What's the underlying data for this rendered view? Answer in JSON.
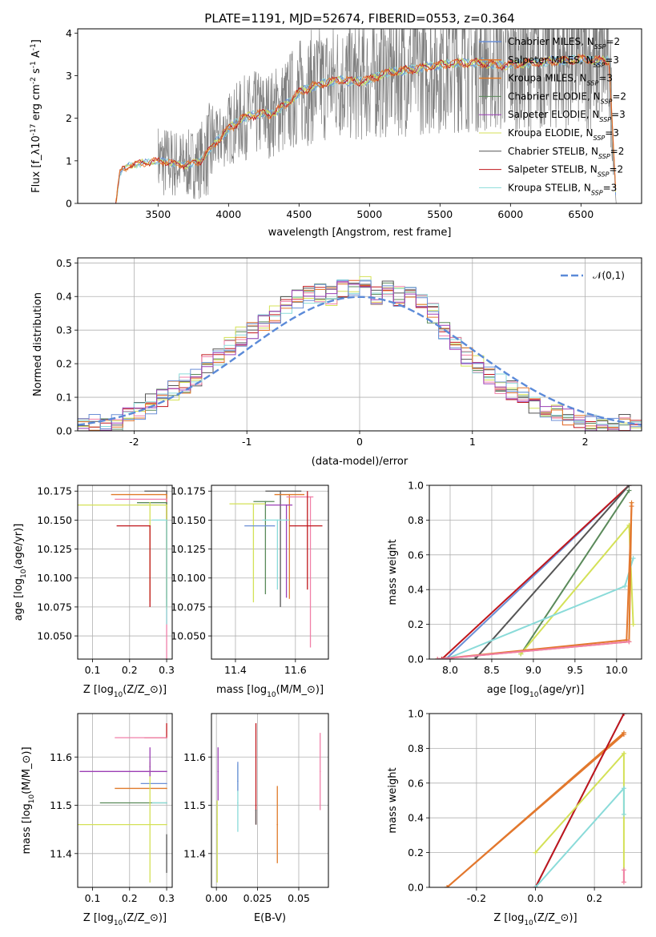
{
  "title": "PLATE=1191, MJD=52674, FIBERID=0553, z=0.364",
  "colors": {
    "Chabrier MILES": "#6b8fd6",
    "Salpeter MILES": "#e3772e",
    "Kroupa MILES": "#e07b2a",
    "Chabrier ELODIE": "#5a8a5a",
    "Salpeter ELODIE": "#9b3fb5",
    "Kroupa ELODIE": "#d4e157",
    "Chabrier STELIB": "#555555",
    "Salpeter STELIB": "#c0161b",
    "Kroupa STELIB": "#8adbd9",
    "pink": "#f07fa8",
    "data": "#808080"
  },
  "chart_data": [
    {
      "id": "spectrum",
      "type": "line",
      "xlabel": "wavelength [Angstrom, rest frame]",
      "ylabel": "Flux [f$_\\lambda$10$^{-17}$ erg cm$^{-2}$ s$^{-1}$ A$^{-1}$]",
      "xlim": [
        2930,
        6930
      ],
      "ylim": [
        0,
        4.1
      ],
      "xticks": [
        3500,
        4000,
        4500,
        5000,
        5500,
        6000,
        6500
      ],
      "yticks": [
        0,
        1,
        2,
        3,
        4
      ],
      "legend_position": "top-right",
      "legend": [
        {
          "name": "Chabrier MILES",
          "nssp": "2"
        },
        {
          "name": "Salpeter MILES",
          "nssp": "3"
        },
        {
          "name": "Kroupa MILES",
          "nssp": "3"
        },
        {
          "name": "Chabrier ELODIE",
          "nssp": "2"
        },
        {
          "name": "Salpeter ELODIE",
          "nssp": "3"
        },
        {
          "name": "Kroupa ELODIE",
          "nssp": "3"
        },
        {
          "name": "Chabrier STELIB",
          "nssp": "2"
        },
        {
          "name": "Salpeter STELIB",
          "nssp": "2"
        },
        {
          "name": "Kroupa STELIB",
          "nssp": "3"
        }
      ],
      "continuum": {
        "x": [
          3200,
          3230,
          3300,
          3400,
          3500,
          3600,
          3700,
          3800,
          3900,
          4000,
          4100,
          4200,
          4300,
          4400,
          4500,
          4600,
          4700,
          4800,
          4900,
          5000,
          5100,
          5200,
          5300,
          5400,
          5500,
          5600,
          5700,
          5800,
          5900,
          6000,
          6100,
          6200,
          6300,
          6400,
          6500,
          6600,
          6700,
          6750
        ],
        "y": [
          0,
          0.75,
          0.9,
          0.95,
          1.0,
          0.95,
          0.9,
          1.0,
          1.4,
          1.75,
          2.0,
          2.1,
          2.1,
          2.3,
          2.6,
          2.75,
          2.85,
          2.9,
          2.85,
          2.9,
          3.05,
          3.1,
          3.15,
          3.2,
          3.25,
          3.3,
          3.3,
          3.3,
          3.25,
          3.25,
          3.3,
          3.3,
          3.35,
          3.35,
          3.4,
          3.35,
          3.35,
          0
        ]
      }
    },
    {
      "id": "residuals",
      "type": "step",
      "xlabel": "(data-model)/error",
      "ylabel": "Normed distribution",
      "xlim": [
        -2.5,
        2.5
      ],
      "ylim": [
        0,
        0.515
      ],
      "xticks": [
        -2,
        -1,
        0,
        1,
        2
      ],
      "yticks": [
        0.0,
        0.1,
        0.2,
        0.3,
        0.4,
        0.5
      ],
      "legend": "$\\mathcal{N}(0,1)$",
      "legend_position": "top-right",
      "gaussian": {
        "mu": 0,
        "sigma": 1
      },
      "bin_width": 0.1,
      "hist_base": [
        0.02,
        0.02,
        0.02,
        0.025,
        0.04,
        0.06,
        0.08,
        0.1,
        0.12,
        0.14,
        0.16,
        0.2,
        0.22,
        0.25,
        0.28,
        0.3,
        0.32,
        0.35,
        0.37,
        0.39,
        0.41,
        0.41,
        0.4,
        0.42,
        0.43,
        0.43,
        0.4,
        0.42,
        0.4,
        0.4,
        0.38,
        0.35,
        0.3,
        0.26,
        0.22,
        0.2,
        0.17,
        0.14,
        0.12,
        0.1,
        0.08,
        0.07,
        0.06,
        0.04,
        0.03,
        0.02,
        0.02,
        0.02,
        0.02,
        0.02
      ]
    },
    {
      "id": "age-vs-Z",
      "type": "errorbar",
      "xlabel": "Z [log$_{10}$(Z/Z$_\\odot$)]",
      "ylabel": "age  [log$_{10}$($age/yr$)]",
      "xlim": [
        0.06,
        0.315
      ],
      "ylim": [
        10.03,
        10.18
      ],
      "xticks": [
        0.1,
        0.2,
        0.3
      ],
      "yticks": [
        10.05,
        10.075,
        10.1,
        10.125,
        10.15,
        10.175
      ],
      "points": [
        {
          "x": 0.3,
          "y": 10.175,
          "xerr": [
            0.06,
            0
          ],
          "yerr": [
            0.1,
            0
          ],
          "color": "Chabrier STELIB"
        },
        {
          "x": 0.3,
          "y": 10.172,
          "xerr": [
            0.15,
            0
          ],
          "yerr": [
            0.09,
            0
          ],
          "color": "Kroupa MILES"
        },
        {
          "x": 0.3,
          "y": 10.168,
          "xerr": [
            0.14,
            0
          ],
          "yerr": [
            0.14,
            0
          ],
          "color": "pink"
        },
        {
          "x": 0.3,
          "y": 10.165,
          "xerr": [
            0.08,
            0
          ],
          "yerr": [
            0.09,
            0
          ],
          "color": "Chabrier ELODIE"
        },
        {
          "x": 0.3,
          "y": 10.163,
          "xerr": [
            0.24,
            0
          ],
          "yerr": [
            0.09,
            0
          ],
          "color": "Kroupa ELODIE"
        },
        {
          "x": 0.3,
          "y": 10.15,
          "xerr": [
            0.04,
            0
          ],
          "yerr": [
            0.09,
            0
          ],
          "color": "Kroupa STELIB"
        },
        {
          "x": 0.255,
          "y": 10.165,
          "xerr": [
            0,
            0
          ],
          "yerr": [
            0.085,
            0
          ],
          "color": "Kroupa ELODIE"
        },
        {
          "x": 0.255,
          "y": 10.145,
          "xerr": [
            0.09,
            0
          ],
          "yerr": [
            0.07,
            0
          ],
          "color": "Salpeter STELIB"
        }
      ]
    },
    {
      "id": "age-vs-mass",
      "type": "errorbar",
      "xlabel": "mass [log$_{10}$($M/M_\\odot$)]",
      "ylabel": "",
      "xlim": [
        11.32,
        11.71
      ],
      "ylim": [
        10.03,
        10.18
      ],
      "xticks": [
        11.4,
        11.6
      ],
      "yticks": [
        10.05,
        10.075,
        10.1,
        10.125,
        10.15,
        10.175
      ],
      "points": [
        {
          "x": 11.55,
          "y": 10.175,
          "xerr": [
            0.05,
            0.07
          ],
          "yerr": [
            0.1,
            0
          ],
          "color": "Chabrier STELIB"
        },
        {
          "x": 11.58,
          "y": 10.172,
          "xerr": [
            0.05,
            0.05
          ],
          "yerr": [
            0.09,
            0
          ],
          "color": "Kroupa MILES"
        },
        {
          "x": 11.65,
          "y": 10.17,
          "xerr": [
            0.08,
            0.01
          ],
          "yerr": [
            0.13,
            0
          ],
          "color": "pink"
        },
        {
          "x": 11.5,
          "y": 10.166,
          "xerr": [
            0.04,
            0.03
          ],
          "yerr": [
            0.08,
            0
          ],
          "color": "Chabrier ELODIE"
        },
        {
          "x": 11.46,
          "y": 10.164,
          "xerr": [
            0.08,
            0.04
          ],
          "yerr": [
            0.085,
            0
          ],
          "color": "Kroupa ELODIE"
        },
        {
          "x": 11.57,
          "y": 10.163,
          "xerr": [
            0.07,
            0.02
          ],
          "yerr": [
            0.08,
            0
          ],
          "color": "Salpeter ELODIE"
        },
        {
          "x": 11.54,
          "y": 10.15,
          "xerr": [
            0.05,
            0.04
          ],
          "yerr": [
            0.06,
            0
          ],
          "color": "Kroupa STELIB"
        },
        {
          "x": 11.64,
          "y": 10.145,
          "xerr": [
            0.06,
            0.05
          ],
          "yerr": [
            0.055,
            0.03
          ],
          "color": "Salpeter STELIB"
        },
        {
          "x": 11.53,
          "y": 10.145,
          "xerr": [
            0.1,
            0
          ],
          "yerr": [
            0,
            0
          ],
          "color": "Chabrier MILES"
        }
      ]
    },
    {
      "id": "massweight-vs-age",
      "type": "line",
      "xlabel": "age  [log$_{10}$($age/yr$)]",
      "ylabel": "mass weight",
      "xlim": [
        7.75,
        10.3
      ],
      "ylim": [
        0,
        1.0
      ],
      "xticks": [
        8.0,
        8.5,
        9.0,
        9.5,
        10.0
      ],
      "yticks": [
        0.0,
        0.2,
        0.4,
        0.6,
        0.8,
        1.0
      ],
      "series": [
        {
          "color": "Chabrier MILES",
          "x": [
            7.95,
            10.15
          ],
          "y": [
            0.0,
            1.0
          ]
        },
        {
          "color": "Salpeter STELIB",
          "x": [
            7.9,
            10.15
          ],
          "y": [
            0.0,
            1.0
          ]
        },
        {
          "color": "Chabrier STELIB",
          "x": [
            8.3,
            10.15
          ],
          "y": [
            0.0,
            1.0
          ]
        },
        {
          "color": "Chabrier ELODIE",
          "x": [
            8.85,
            10.15
          ],
          "y": [
            0.03,
            0.97
          ]
        },
        {
          "color": "Kroupa ELODIE",
          "x": [
            8.85,
            10.15,
            10.2
          ],
          "y": [
            0.03,
            0.77,
            0.2
          ]
        },
        {
          "color": "Kroupa STELIB",
          "x": [
            7.95,
            10.1,
            10.2
          ],
          "y": [
            0.0,
            0.42,
            0.58
          ]
        },
        {
          "color": "Kroupa MILES",
          "x": [
            7.85,
            10.15,
            10.18
          ],
          "y": [
            0.0,
            0.1,
            0.9
          ]
        },
        {
          "color": "Salpeter MILES",
          "x": [
            7.85,
            10.12,
            10.18
          ],
          "y": [
            0.0,
            0.11,
            0.88
          ]
        },
        {
          "color": "pink",
          "x": [
            7.85,
            10.15
          ],
          "y": [
            0.0,
            0.1
          ]
        }
      ]
    },
    {
      "id": "mass-vs-Z",
      "type": "errorbar",
      "xlabel": "Z [log$_{10}$(Z/Z$_\\odot$)]",
      "ylabel": "mass [log$_{10}$($M/M_\\odot$)]",
      "xlim": [
        0.06,
        0.315
      ],
      "ylim": [
        11.33,
        11.69
      ],
      "xticks": [
        0.1,
        0.2,
        0.3
      ],
      "yticks": [
        11.4,
        11.5,
        11.6
      ],
      "points": [
        {
          "x": 0.3,
          "y": 11.64,
          "xerr": [
            0.06,
            0
          ],
          "yerr": [
            0.0,
            0.03
          ],
          "color": "Salpeter STELIB"
        },
        {
          "x": 0.3,
          "y": 11.64,
          "xerr": [
            0.14,
            0
          ],
          "yerr": [
            0,
            0
          ],
          "color": "pink"
        },
        {
          "x": 0.3,
          "y": 11.57,
          "xerr": [
            0.235,
            0
          ],
          "yerr": [
            0,
            0
          ],
          "color": "Salpeter ELODIE"
        },
        {
          "x": 0.3,
          "y": 11.545,
          "xerr": [
            0.07,
            0
          ],
          "yerr": [
            0,
            0
          ],
          "color": "Chabrier MILES"
        },
        {
          "x": 0.3,
          "y": 11.535,
          "xerr": [
            0.14,
            0
          ],
          "yerr": [
            0,
            0
          ],
          "color": "Kroupa MILES"
        },
        {
          "x": 0.3,
          "y": 11.505,
          "xerr": [
            0.18,
            0
          ],
          "yerr": [
            0,
            0
          ],
          "color": "Chabrier ELODIE"
        },
        {
          "x": 0.3,
          "y": 11.505,
          "xerr": [
            0.04,
            0
          ],
          "yerr": [
            0,
            0
          ],
          "color": "Kroupa STELIB"
        },
        {
          "x": 0.3,
          "y": 11.46,
          "xerr": [
            0.24,
            0
          ],
          "yerr": [
            0,
            0
          ],
          "color": "Kroupa ELODIE"
        },
        {
          "x": 0.3,
          "y": 11.4,
          "xerr": [
            0,
            0
          ],
          "yerr": [
            0.04,
            0.04
          ],
          "color": "Chabrier STELIB"
        },
        {
          "x": 0.255,
          "y": 11.55,
          "xerr": [
            0,
            0
          ],
          "yerr": [
            0.21,
            0.04
          ],
          "color": "Kroupa ELODIE"
        },
        {
          "x": 0.255,
          "y": 11.58,
          "xerr": [
            0,
            0
          ],
          "yerr": [
            0.02,
            0.04
          ],
          "color": "Salpeter ELODIE"
        }
      ]
    },
    {
      "id": "mass-vs-ebv",
      "type": "errorbar",
      "xlabel": "E(B-V)",
      "ylabel": "",
      "xlim": [
        -0.003,
        0.068
      ],
      "ylim": [
        11.33,
        11.69
      ],
      "xticks": [
        0.0,
        0.025,
        0.05
      ],
      "tick_labels": [
        "0.00",
        "0.025",
        "0.05"
      ],
      "yticks": [
        11.4,
        11.5,
        11.6
      ],
      "points": [
        {
          "x": 0.001,
          "y": 11.57,
          "xerr": [
            0,
            0
          ],
          "yerr": [
            0.06,
            0.05
          ],
          "color": "Salpeter ELODIE"
        },
        {
          "x": 0.0005,
          "y": 11.46,
          "xerr": [
            0,
            0
          ],
          "yerr": [
            0.12,
            0.05
          ],
          "color": "Kroupa ELODIE"
        },
        {
          "x": 0.013,
          "y": 11.505,
          "xerr": [
            0,
            0
          ],
          "yerr": [
            0.06,
            0.08
          ],
          "color": "Kroupa STELIB"
        },
        {
          "x": 0.013,
          "y": 11.55,
          "xerr": [
            0,
            0
          ],
          "yerr": [
            0.02,
            0.04
          ],
          "color": "Chabrier MILES"
        },
        {
          "x": 0.024,
          "y": 11.5,
          "xerr": [
            0,
            0
          ],
          "yerr": [
            0.04,
            0.17
          ],
          "color": "Salpeter STELIB"
        },
        {
          "x": 0.024,
          "y": 11.49,
          "xerr": [
            0,
            0
          ],
          "yerr": [
            0.03,
            0.0
          ],
          "color": "Chabrier STELIB"
        },
        {
          "x": 0.037,
          "y": 11.46,
          "xerr": [
            0,
            0
          ],
          "yerr": [
            0.08,
            0.08
          ],
          "color": "Kroupa MILES"
        },
        {
          "x": 0.063,
          "y": 11.57,
          "xerr": [
            0,
            0
          ],
          "yerr": [
            0.08,
            0.08
          ],
          "color": "pink"
        }
      ]
    },
    {
      "id": "massweight-vs-Z",
      "type": "line",
      "xlabel": "Z [log$_{10}$(Z/Z$_\\odot$)]",
      "ylabel": "mass weight",
      "xlim": [
        -0.36,
        0.36
      ],
      "ylim": [
        0,
        1.0
      ],
      "xticks": [
        -0.2,
        0.0,
        0.2
      ],
      "yticks": [
        0.0,
        0.2,
        0.4,
        0.6,
        0.8,
        1.0
      ],
      "series": [
        {
          "color": "Chabrier MILES",
          "x": [
            -0.0,
            0.3
          ],
          "y": [
            0.0,
            1.0
          ]
        },
        {
          "color": "Kroupa MILES",
          "x": [
            -0.3,
            0.3
          ],
          "y": [
            0.0,
            0.89
          ]
        },
        {
          "color": "Salpeter MILES",
          "x": [
            -0.3,
            0.3
          ],
          "y": [
            0.0,
            0.88
          ]
        },
        {
          "color": "Salpeter STELIB",
          "x": [
            0.0,
            0.3
          ],
          "y": [
            0.0,
            1.0
          ]
        },
        {
          "color": "Kroupa ELODIE",
          "x": [
            0.0,
            0.3,
            0.3
          ],
          "y": [
            0.2,
            0.77,
            0.03
          ]
        },
        {
          "color": "Kroupa STELIB",
          "x": [
            0.0,
            0.3,
            0.3
          ],
          "y": [
            0.0,
            0.57,
            0.42
          ]
        },
        {
          "color": "pink",
          "x": [
            0.3,
            0.3
          ],
          "y": [
            0.1,
            0.03
          ]
        }
      ]
    }
  ]
}
